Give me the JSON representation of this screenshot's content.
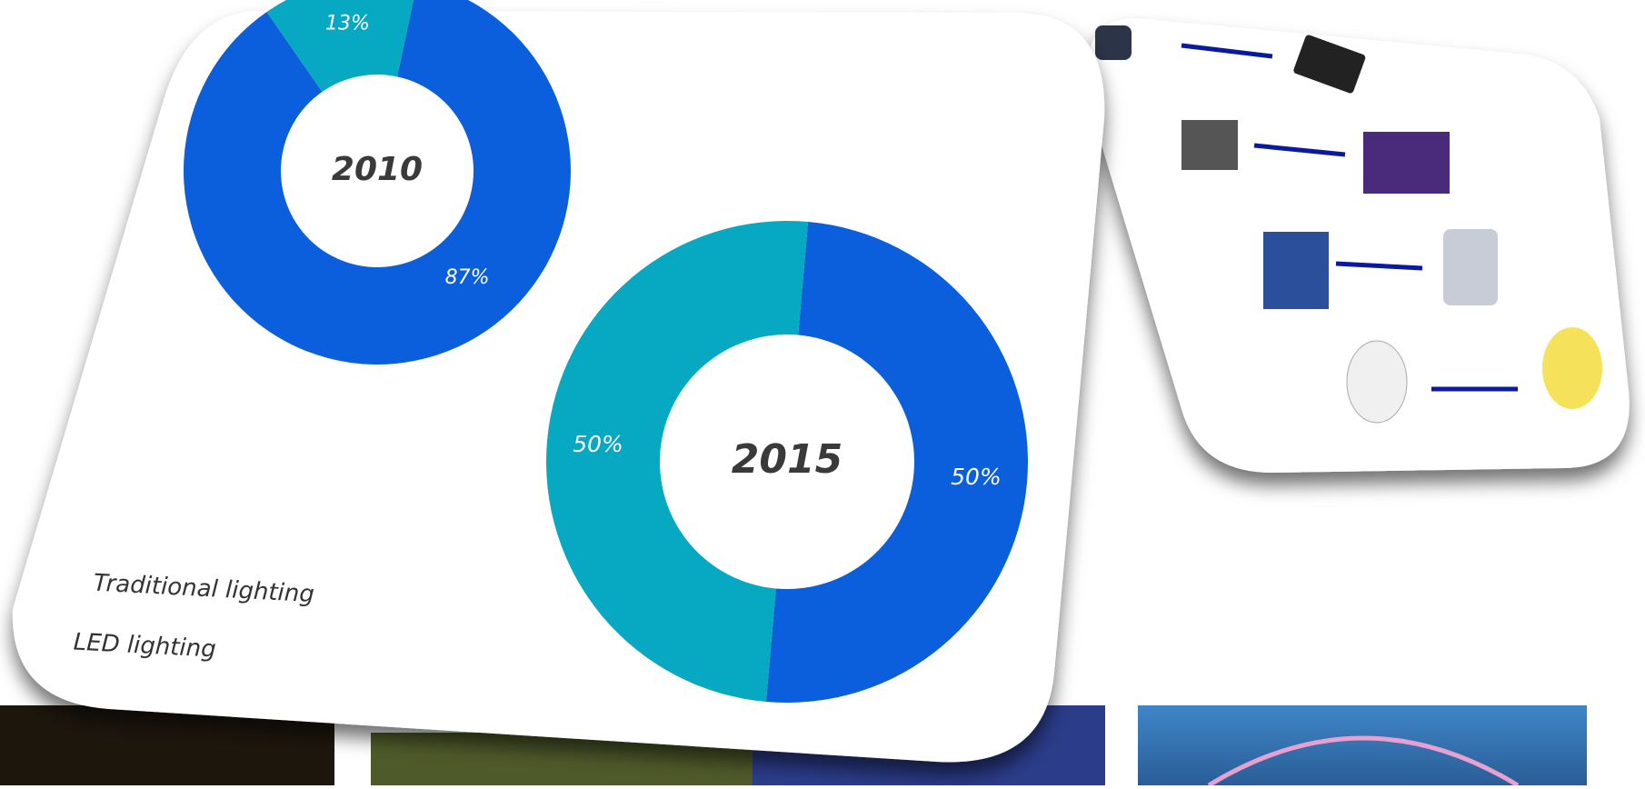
{
  "chart_data": [
    {
      "type": "pie",
      "title": "2010",
      "categories": [
        "Traditional lighting",
        "LED lighting"
      ],
      "values": [
        87,
        13
      ],
      "value_labels": [
        "87%",
        "13%"
      ],
      "colors": [
        "#0b5fdc",
        "#06a8c2"
      ]
    },
    {
      "type": "pie",
      "title": "2015",
      "values": [
        50,
        50
      ],
      "value_labels": [
        "50%",
        "50%"
      ],
      "colors": [
        "#0b5fdc",
        "#06a8c2"
      ]
    }
  ]
}
